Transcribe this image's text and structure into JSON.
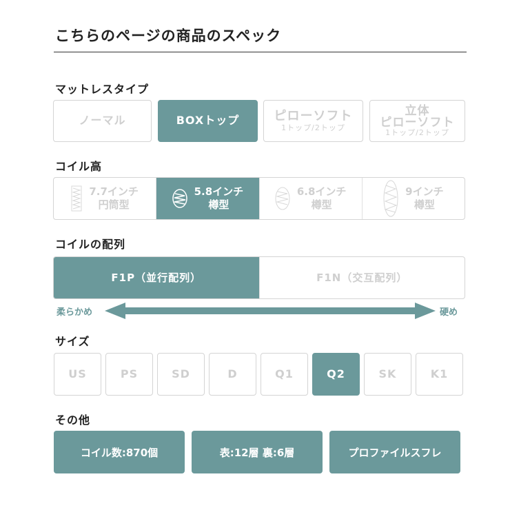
{
  "title": "こちらのページの商品のスペック",
  "sections": {
    "mattress": "マットレスタイプ",
    "coil_height": "コイル高",
    "coil_array": "コイルの配列",
    "size": "サイズ",
    "other": "その他"
  },
  "mattress_types": [
    {
      "label": "ノーマル",
      "sub": "",
      "selected": false
    },
    {
      "label": "BOXトップ",
      "sub": "",
      "selected": true
    },
    {
      "label": "ピローソフト",
      "sub": "1トップ/2トップ",
      "selected": false
    },
    {
      "label": "立体\nピローソフト",
      "top": "立体",
      "main": "ピローソフト",
      "sub": "1トップ/2トップ",
      "selected": false
    }
  ],
  "coil_heights": [
    {
      "label": "7.7インチ",
      "type": "円筒型",
      "icon": "cylinder-coil-icon",
      "selected": false
    },
    {
      "label": "5.8インチ",
      "type": "樽型",
      "icon": "barrel-coil-icon",
      "selected": true
    },
    {
      "label": "6.8インチ",
      "type": "樽型",
      "icon": "barrel-coil-icon",
      "selected": false
    },
    {
      "label": "9インチ",
      "type": "樽型",
      "icon": "barrel-coil-icon",
      "selected": false
    }
  ],
  "coil_arrays": [
    {
      "label": "F1P（並行配列）",
      "selected": true
    },
    {
      "label": "F1N（交互配列）",
      "selected": false
    }
  ],
  "firmness": {
    "soft": "柔らかめ",
    "hard": "硬め"
  },
  "sizes": [
    {
      "label": "US"
    },
    {
      "label": "PS"
    },
    {
      "label": "SD"
    },
    {
      "label": "D"
    },
    {
      "label": "Q1"
    },
    {
      "label": "Q2",
      "selected": true
    },
    {
      "label": "SK"
    },
    {
      "label": "K1"
    }
  ],
  "other": [
    "コイル数:870個",
    "表:12層 裏:6層",
    "プロファイルスフレ"
  ],
  "colors": {
    "accent": "#6b999b",
    "disabled": "#cfcfcf"
  }
}
